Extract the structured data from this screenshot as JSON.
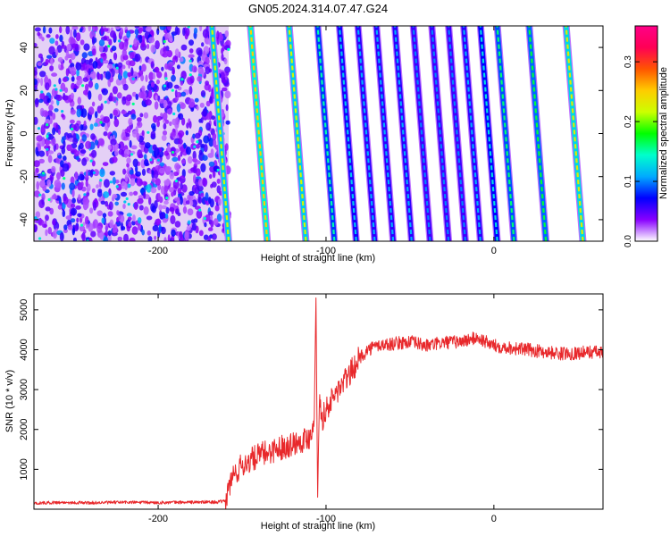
{
  "title": "GN05.2024.314.07.47.G24",
  "chart_data": [
    {
      "type": "heatmap",
      "xlabel": "Height of straight line (km)",
      "ylabel": "Frequency (Hz)",
      "xlim": [
        -274,
        65
      ],
      "ylim": [
        -50,
        50
      ],
      "xticks": [
        -200,
        -100,
        0
      ],
      "yticks": [
        -40,
        -20,
        0,
        20,
        40
      ],
      "grid": false,
      "colorbar": {
        "label": "Normalized spectral amplitude",
        "range": [
          0.0,
          0.36
        ],
        "ticks": [
          0.0,
          0.1,
          0.2,
          0.3
        ],
        "tick_labels": [
          "0.0",
          "0.1",
          "0.2",
          "0.3"
        ],
        "colormap": [
          "#ffffff",
          "#8800ff",
          "#0000ff",
          "#00aaff",
          "#00ffcc",
          "#00ff00",
          "#ccff00",
          "#ffcc00",
          "#ff5500",
          "#ff0055",
          "#ff0088"
        ]
      },
      "noise_region_x": [
        -274,
        -158
      ],
      "stripe_x_at_freq_minus50": [
        -158,
        -135,
        -112,
        -95,
        -82,
        -71,
        -60,
        -49,
        -38,
        -27,
        -17,
        -8,
        2,
        12,
        31,
        53
      ],
      "stripe_slope_km_per_hz": -0.1,
      "stripe_peak_amplitude": [
        0.22,
        0.25,
        0.22,
        0.15,
        0.12,
        0.11,
        0.11,
        0.11,
        0.1,
        0.1,
        0.1,
        0.11,
        0.13,
        0.16,
        0.17,
        0.23
      ]
    },
    {
      "type": "line",
      "xlabel": "Height of straight line (km)",
      "ylabel": "SNR (10 * v/v)",
      "xlim": [
        -274,
        65
      ],
      "ylim": [
        0,
        5400
      ],
      "xticks": [
        -200,
        -100,
        0
      ],
      "yticks": [
        1000,
        2000,
        3000,
        4000,
        5000
      ],
      "grid": false,
      "series": [
        {
          "color": "#e8282b",
          "x": [
            -274,
            -260,
            -240,
            -220,
            -200,
            -180,
            -165,
            -160,
            -156,
            -150,
            -140,
            -130,
            -120,
            -110,
            -107,
            -106,
            -105,
            -104,
            -102,
            -100,
            -95,
            -90,
            -85,
            -80,
            -75,
            -70,
            -60,
            -50,
            -40,
            -30,
            -20,
            -10,
            0,
            10,
            20,
            30,
            40,
            50,
            60,
            65
          ],
          "y": [
            150,
            170,
            160,
            175,
            165,
            175,
            180,
            200,
            800,
            1100,
            1350,
            1500,
            1650,
            1800,
            2300,
            5300,
            300,
            2700,
            2300,
            2500,
            2850,
            3150,
            3450,
            3800,
            4000,
            4100,
            4150,
            4200,
            4100,
            4180,
            4200,
            4300,
            4100,
            4050,
            4000,
            3950,
            3900,
            3920,
            3950,
            3900
          ]
        }
      ]
    }
  ]
}
